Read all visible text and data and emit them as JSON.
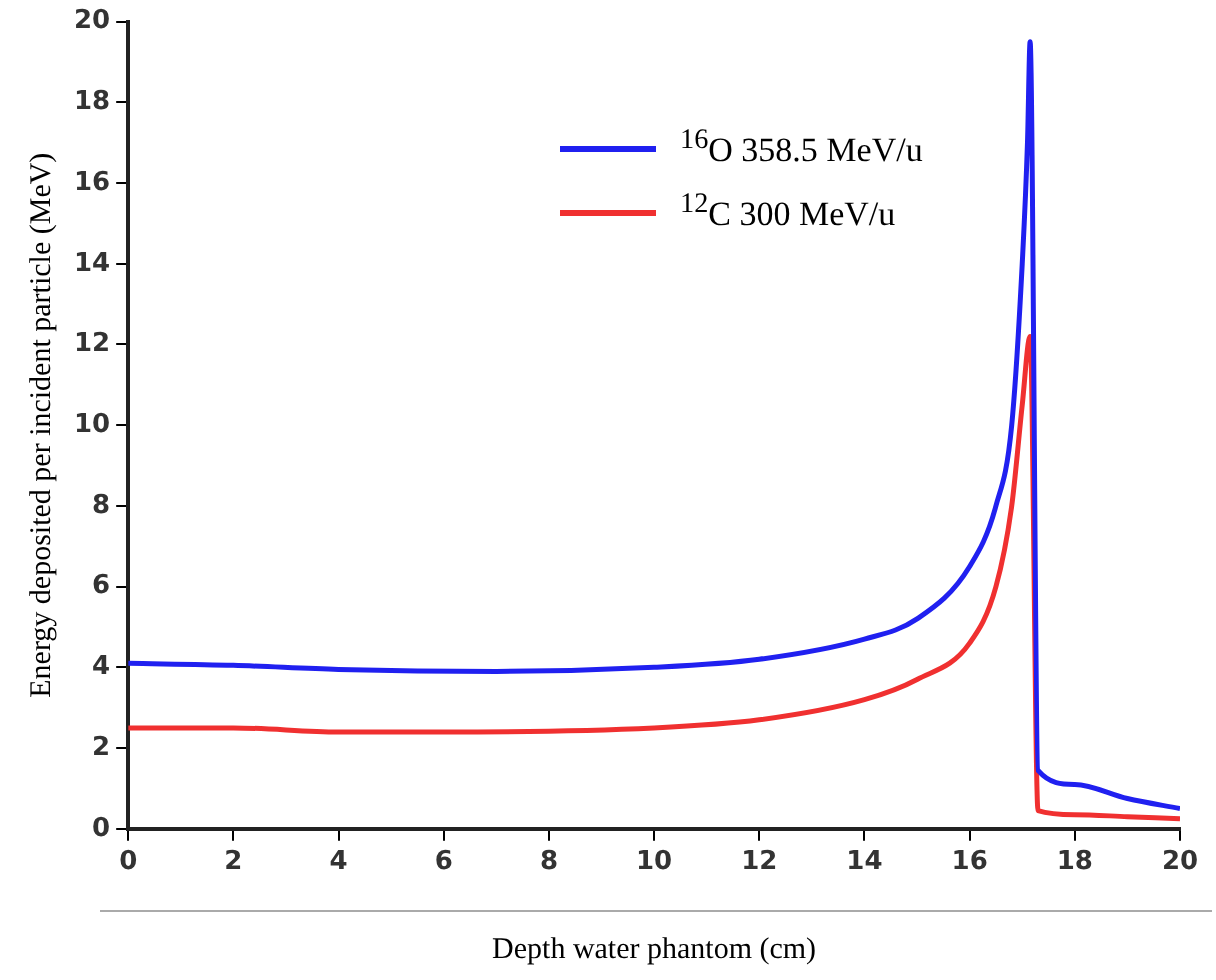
{
  "chart_data": {
    "type": "line",
    "xlabel": "Depth water phantom (cm)",
    "ylabel": "Energy deposited per incident particle (MeV)",
    "xlim": [
      0,
      20
    ],
    "xticks": [
      0,
      2,
      4,
      6,
      8,
      10,
      12,
      14,
      16,
      18,
      20
    ],
    "ylim": [
      0,
      20
    ],
    "yticks": [
      0,
      2,
      4,
      6,
      8,
      10,
      12,
      14,
      16,
      18,
      20
    ],
    "grid": false,
    "legend": "top",
    "marker": "none",
    "line_style": "solid",
    "series": [
      {
        "name": "$^{16}$O 358.5 MeV/u",
        "color": "#2020f0",
        "x": [
          0,
          2,
          4,
          7,
          10,
          12,
          14,
          15,
          16,
          16.5,
          16.8,
          17.0,
          17.1,
          17.15,
          17.3,
          18,
          19,
          20
        ],
        "values": [
          4.1,
          4.05,
          3.95,
          3.9,
          4.0,
          4.2,
          4.7,
          5.2,
          6.5,
          8,
          10,
          14,
          17,
          19.5,
          1.45,
          1.1,
          0.75,
          0.5
        ]
      },
      {
        "name": "$^{12}$C 300 MeV/u",
        "color": "#f03030",
        "x": [
          0,
          2,
          4,
          6,
          10,
          12,
          14,
          15,
          16,
          16.5,
          16.8,
          17.0,
          17.15,
          17.3,
          18,
          19,
          20
        ],
        "values": [
          2.5,
          2.5,
          2.4,
          2.4,
          2.5,
          2.7,
          3.2,
          3.7,
          4.6,
          6,
          8,
          10.5,
          12.2,
          0.45,
          0.35,
          0.3,
          0.25
        ]
      }
    ]
  }
}
